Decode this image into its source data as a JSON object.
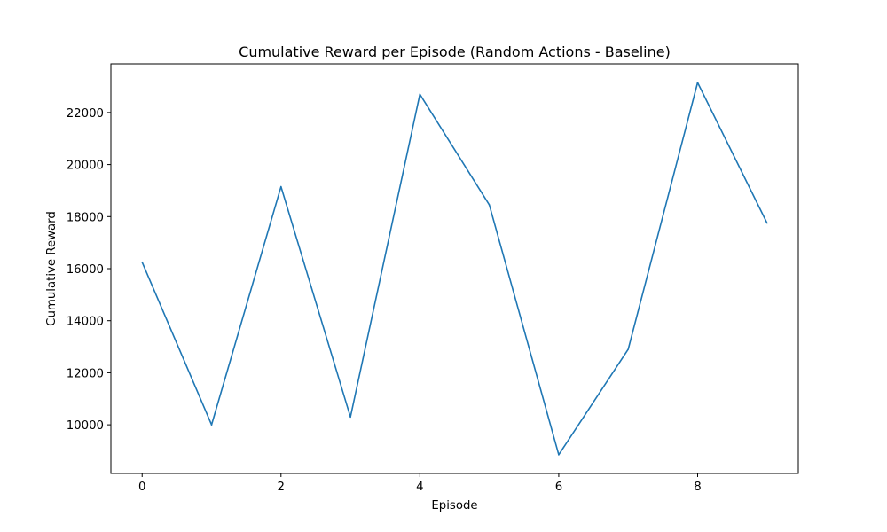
{
  "chart_data": {
    "type": "line",
    "title": "Cumulative Reward per Episode (Random Actions - Baseline)",
    "xlabel": "Episode",
    "ylabel": "Cumulative Reward",
    "x": [
      0,
      1,
      2,
      3,
      4,
      5,
      6,
      7,
      8,
      9
    ],
    "series": [
      {
        "values": [
          16250,
          10000,
          19150,
          10300,
          22700,
          18450,
          8850,
          12900,
          23150,
          17750
        ]
      }
    ],
    "xlim": [
      -0.45,
      9.45
    ],
    "ylim": [
      8130,
      23870
    ],
    "xticks": [
      0,
      2,
      4,
      6,
      8
    ],
    "xtick_labels": [
      "0",
      "2",
      "4",
      "6",
      "8"
    ],
    "yticks": [
      10000,
      12000,
      14000,
      16000,
      18000,
      20000,
      22000
    ],
    "ytick_labels": [
      "10000",
      "12000",
      "14000",
      "16000",
      "18000",
      "20000",
      "22000"
    ],
    "grid": false,
    "line_color": "#1f77b4"
  }
}
